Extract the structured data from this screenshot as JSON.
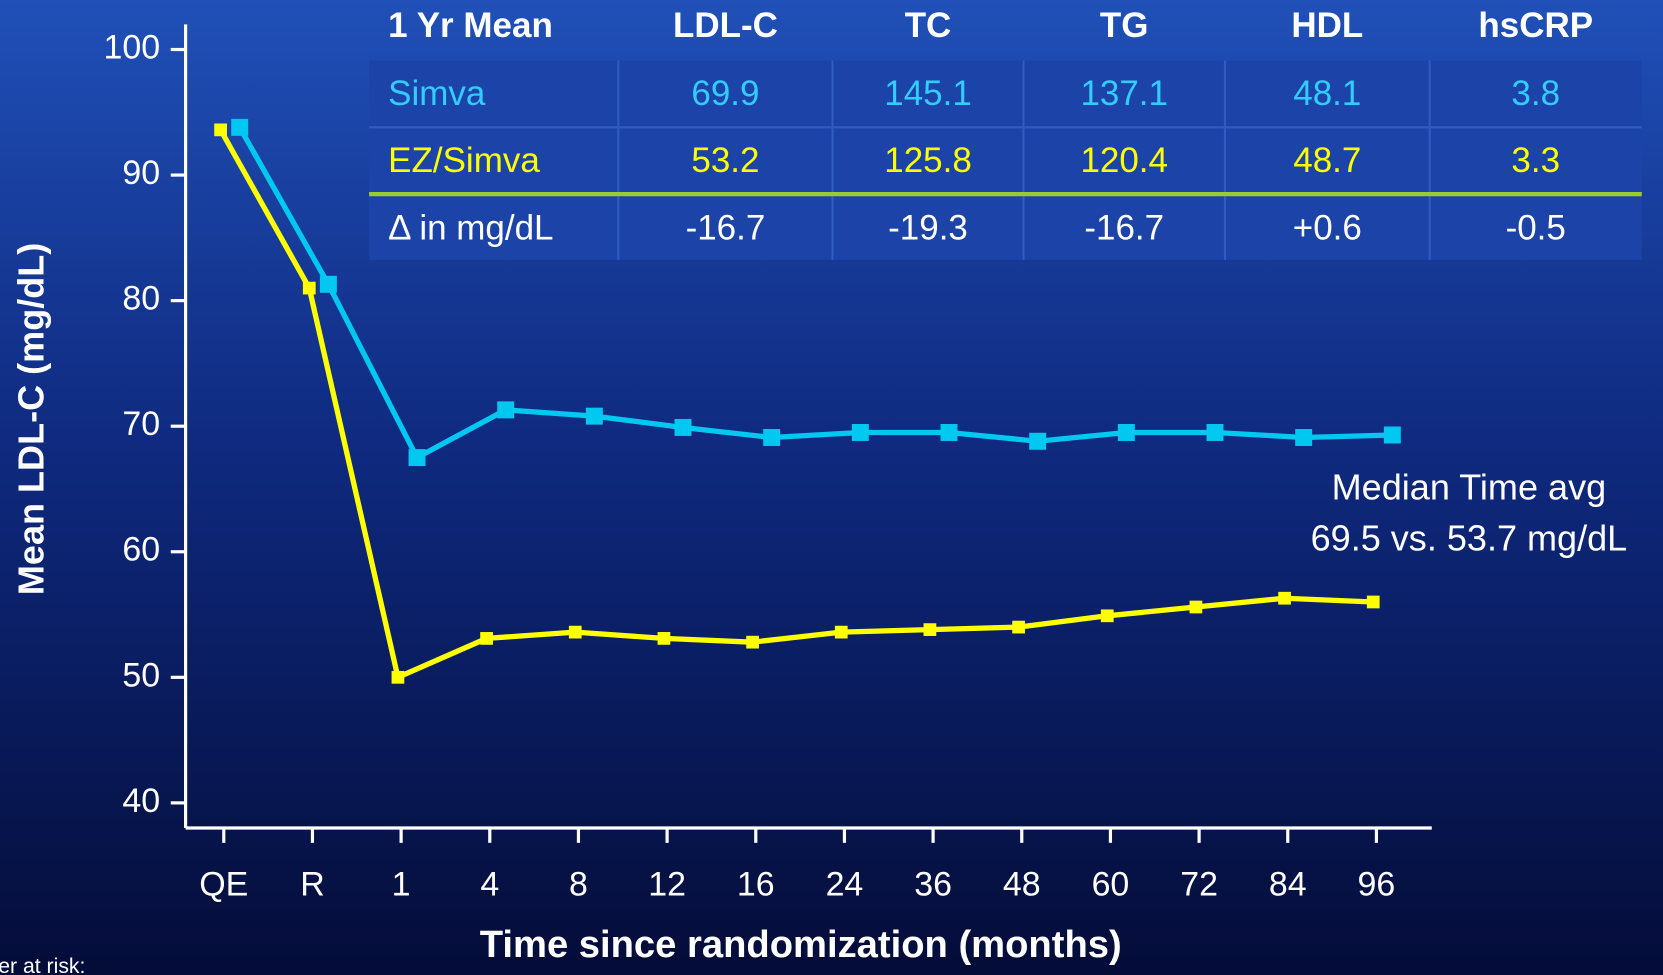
{
  "chart_data": {
    "type": "line",
    "categories": [
      "QE",
      "R",
      "1",
      "4",
      "8",
      "12",
      "16",
      "24",
      "36",
      "48",
      "60",
      "72",
      "84",
      "96"
    ],
    "series": [
      {
        "color": "#00c8f0",
        "values": [
          93.8,
          81.3,
          67.5,
          71.3,
          70.8,
          69.9,
          69.1,
          69.5,
          69.5,
          68.8,
          69.5,
          69.5,
          69.1,
          69.3
        ]
      },
      {
        "color": "#ffff00",
        "values": [
          93.6,
          81.0,
          50.0,
          53.1,
          53.6,
          53.1,
          52.8,
          53.6,
          53.8,
          54.0,
          54.9,
          55.6,
          56.3,
          56.0
        ]
      }
    ],
    "ylim": [
      38,
      102
    ],
    "yticks": [
      40,
      50,
      60,
      70,
      80,
      90,
      100
    ],
    "x_label": "Time since randomization (months)",
    "y_label": "Mean LDL-C (mg/dL)",
    "annotation": [
      "Median Time avg",
      "69.5 vs. 53.7 mg/dL"
    ],
    "footnote": "Number at risk:"
  },
  "table": {
    "header": [
      "1 Yr Mean",
      "LDL-C",
      "TC",
      "TG",
      "HDL",
      "hsCRP"
    ],
    "rows": [
      [
        "Simva",
        "69.9",
        "145.1",
        "137.1",
        "48.1",
        "3.8"
      ],
      [
        "EZ/Simva",
        "53.2",
        "125.8",
        "120.4",
        "48.7",
        "3.3"
      ],
      [
        "Δ in mg/dL",
        "-16.7",
        "-19.3",
        "-16.7",
        "+0.6",
        "-0.5"
      ]
    ]
  }
}
